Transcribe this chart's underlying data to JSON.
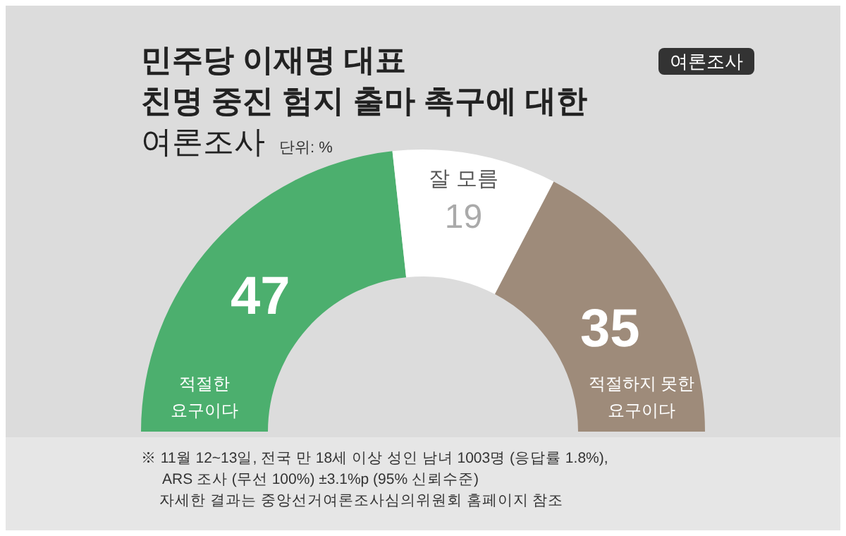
{
  "chart_data": {
    "type": "donut",
    "title": "민주당 이재명 대표\n친명 중진 험지 출마 촉구에 대한\n여론조사",
    "subtitle": "단위: %",
    "categories": [
      "적절한 요구이다",
      "잘 모름",
      "적절하지 못한 요구이다"
    ],
    "values": [
      47,
      19,
      35
    ],
    "colors": [
      "#4caf6e",
      "#ffffff",
      "#9e8b7a"
    ],
    "data_labels": true,
    "annotations": [
      "여론조사",
      "※ 11월 12~13일, 전국 만 18세 이상 성인 남녀 1003명 (응답률 1.8%),",
      "ARS 조사 (무선 100%) ±3.1%p (95% 신뢰수준)",
      "자세한 결과는 중앙선거여론조사심의위원회 홈페이지 참조"
    ]
  }
}
